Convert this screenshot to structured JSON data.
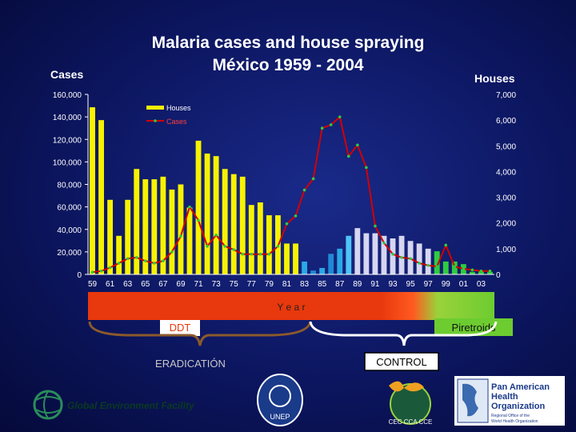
{
  "slide": {
    "title_line1": "Malaria  cases and house spraying",
    "title_line2": "México 1959 - 2004",
    "left_axis_title": "Cases",
    "right_axis_title": "Houses",
    "year_band_label": "Y e a r",
    "ddt_label": "DDT",
    "piretroids_label": "Piretroids",
    "eradication_label": "ERADICATIÓN",
    "control_label": "CONTROL"
  },
  "logos": {
    "gef": "Global Environment Facility",
    "paho_line1": "Pan American",
    "paho_line2": "Health",
    "paho_line3": "Organization",
    "paho_sub1": "Regional Office of the",
    "paho_sub2": "World Health Organization",
    "unep": "UNEP",
    "cec": "CEC CCA CCE"
  },
  "chart_data": {
    "type": "bar",
    "legend": [
      "Houses",
      "Cases"
    ],
    "legend_position": "top-left",
    "categories": [
      1959,
      1960,
      1961,
      1962,
      1963,
      1964,
      1965,
      1966,
      1967,
      1968,
      1969,
      1970,
      1971,
      1972,
      1973,
      1974,
      1975,
      1976,
      1977,
      1978,
      1979,
      1980,
      1981,
      1982,
      1983,
      1984,
      1985,
      1986,
      1987,
      1988,
      1989,
      1990,
      1991,
      1992,
      1993,
      1994,
      1995,
      1996,
      1997,
      1998,
      1999,
      2000,
      2001,
      2002,
      2003,
      2004
    ],
    "x_tick_labels": [
      "59",
      "61",
      "63",
      "65",
      "67",
      "69",
      "71",
      "73",
      "75",
      "77",
      "79",
      "81",
      "83",
      "85",
      "87",
      "89",
      "91",
      "93",
      "95",
      "97",
      "99",
      "01",
      "03"
    ],
    "left_axis": {
      "label": "Cases",
      "ticks": [
        "0",
        "20,000",
        "40,000",
        "60,000",
        "80,000",
        "100,000",
        "120,000",
        "140,000",
        "160,000"
      ],
      "range": [
        0,
        160000
      ]
    },
    "right_axis": {
      "label": "Houses",
      "ticks": [
        "0",
        "1,000",
        "2,000",
        "3,000",
        "4,000",
        "5,000",
        "6,000",
        "7,000"
      ],
      "range": [
        0,
        7000
      ]
    },
    "series": [
      {
        "name": "Houses",
        "axis": "right",
        "values": [
          6500,
          6000,
          2900,
          1500,
          2900,
          4100,
          3700,
          3700,
          3800,
          3300,
          3500,
          2600,
          5200,
          4700,
          4600,
          4100,
          3900,
          3800,
          2700,
          2800,
          2300,
          2300,
          1200,
          1200,
          500,
          150,
          250,
          800,
          1000,
          1500,
          1800,
          1600,
          1600,
          1500,
          1400,
          1500,
          1300,
          1200,
          1000,
          900,
          500,
          500,
          400,
          100,
          150,
          100
        ],
        "colors": [
          "#f7f200",
          "#f7f200",
          "#f7f200",
          "#f7f200",
          "#f7f200",
          "#f7f200",
          "#f7f200",
          "#f7f200",
          "#f7f200",
          "#f7f200",
          "#f7f200",
          "#f7f200",
          "#f7f200",
          "#f7f200",
          "#f7f200",
          "#f7f200",
          "#f7f200",
          "#f7f200",
          "#f7f200",
          "#f7f200",
          "#f7f200",
          "#f7f200",
          "#f7f200",
          "#f7f200",
          "#29a8e8",
          "#1f8ad6",
          "#29a8e8",
          "#1f8ad6",
          "#29a8e8",
          "#4fc3f7",
          "#d6d6f0",
          "#d6d6f0",
          "#d6d6f0",
          "#d6d6f0",
          "#d6d6f0",
          "#d6d6f0",
          "#d6d6f0",
          "#d6d6f0",
          "#d6d6f0",
          "#2ecc40",
          "#2ecc40",
          "#2ecc40",
          "#2ecc40",
          "#2ecc40",
          "#2ecc40",
          "#2ecc40"
        ]
      },
      {
        "name": "Cases",
        "axis": "left",
        "color": "#d40000",
        "values": [
          2000,
          3000,
          6000,
          10000,
          14000,
          15000,
          12000,
          10000,
          12000,
          20000,
          34000,
          60000,
          48000,
          25000,
          35000,
          25000,
          22000,
          18000,
          18000,
          18000,
          18000,
          25000,
          45000,
          52000,
          75000,
          85000,
          130000,
          133000,
          140000,
          105000,
          115000,
          95000,
          43000,
          28000,
          18000,
          15000,
          14000,
          10000,
          8000,
          7000,
          26000,
          7000,
          5000,
          4000,
          3000,
          3000
        ]
      }
    ]
  },
  "colors": {
    "background": "#0c1660",
    "houses_bar": "#f7f200",
    "cases_line": "#d40000",
    "year_band": "#e8380d",
    "piretroids_band": "#7cd63a"
  }
}
